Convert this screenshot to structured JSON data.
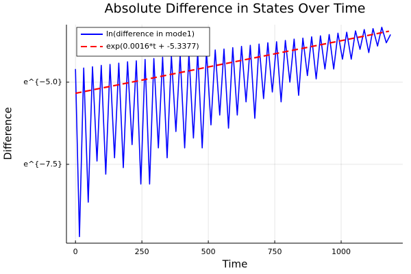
{
  "chart_data": {
    "type": "line",
    "title": "Absolute Difference in States Over Time",
    "x_label": "Time",
    "y_label": "Difference",
    "xlim": [
      -34,
      1232
    ],
    "ylim": [
      -9.9,
      -3.25
    ],
    "xticks": [
      0,
      250,
      500,
      750,
      1000
    ],
    "yticks": [
      {
        "value": -7.5,
        "label": "e^{−7.5}"
      },
      {
        "value": -5.0,
        "label": "e^{−5.0}"
      }
    ],
    "grid": true,
    "legend": "top-left",
    "series": [
      {
        "name": "ln(difference in mode1)",
        "color": "#0000ff",
        "dash": false,
        "x": [
          0,
          15,
          31,
          48,
          64,
          81,
          97,
          114,
          130,
          147,
          163,
          180,
          196,
          213,
          229,
          246,
          262,
          279,
          295,
          312,
          328,
          345,
          361,
          378,
          394,
          411,
          427,
          444,
          460,
          477,
          493,
          510,
          526,
          543,
          559,
          576,
          592,
          609,
          625,
          642,
          658,
          675,
          691,
          708,
          724,
          741,
          757,
          774,
          790,
          807,
          823,
          840,
          856,
          873,
          889,
          906,
          922,
          939,
          955,
          972,
          988,
          1005,
          1021,
          1038,
          1054,
          1071,
          1087,
          1104,
          1120,
          1137,
          1153,
          1170,
          1186
        ],
        "values": [
          -4.6,
          -9.7,
          -4.57,
          -8.65,
          -4.53,
          -7.4,
          -4.49,
          -7.8,
          -4.46,
          -7.3,
          -4.42,
          -7.6,
          -4.38,
          -6.9,
          -4.35,
          -8.1,
          -4.31,
          -8.1,
          -4.28,
          -7.0,
          -4.24,
          -7.3,
          -4.2,
          -6.5,
          -4.17,
          -7.0,
          -4.13,
          -6.7,
          -4.09,
          -7.0,
          -4.06,
          -6.3,
          -4.02,
          -6.0,
          -3.99,
          -6.4,
          -3.95,
          -6.0,
          -3.91,
          -5.6,
          -3.88,
          -6.1,
          -3.84,
          -5.5,
          -3.8,
          -5.3,
          -3.77,
          -5.6,
          -3.73,
          -5.0,
          -3.69,
          -5.4,
          -3.66,
          -4.8,
          -3.62,
          -4.9,
          -3.59,
          -4.6,
          -3.55,
          -4.6,
          -3.51,
          -4.3,
          -3.48,
          -4.3,
          -3.44,
          -4.0,
          -3.4,
          -4.1,
          -3.37,
          -3.9,
          -3.33,
          -3.8,
          -3.55
        ]
      },
      {
        "name": "exp(0.0016*t + -5.3377)",
        "color": "#ff0000",
        "dash": true,
        "x": [
          0,
          1180
        ],
        "values": [
          -5.3377,
          -3.4497
        ]
      }
    ]
  }
}
